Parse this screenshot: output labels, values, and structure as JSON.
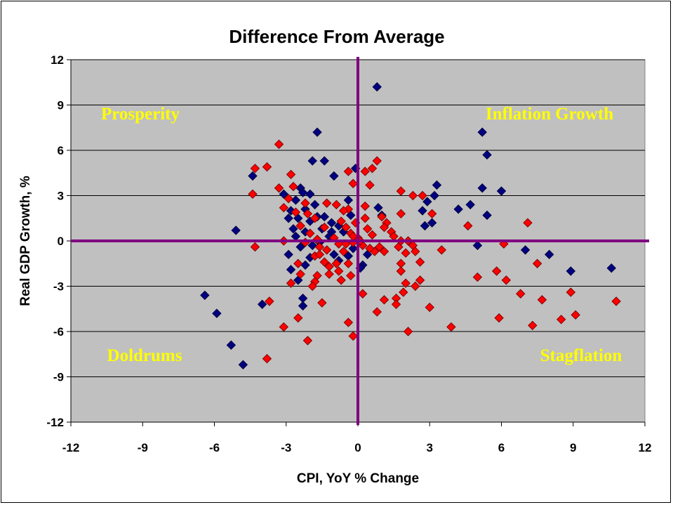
{
  "chart_data": {
    "type": "scatter",
    "title": "Difference From Average",
    "xlabel": "CPI, YoY % Change",
    "ylabel": "Real GDP Growth, %",
    "xlim": [
      -12,
      12
    ],
    "ylim": [
      -12,
      12
    ],
    "xticks": [
      -12,
      -9,
      -6,
      -3,
      0,
      3,
      6,
      9,
      12
    ],
    "yticks": [
      -12,
      -9,
      -6,
      -3,
      0,
      3,
      6,
      9,
      12
    ],
    "grid": "horizontal",
    "legend": "none",
    "colors": {
      "plot_bg": "#c0c0c0",
      "axis_cross": "#800080",
      "quadrant_text": "#ffff00",
      "series_blue": "#000080",
      "series_red": "#ff0000"
    },
    "quadrant_labels": {
      "top_left": "Prosperity",
      "top_right": "Inflation Growth",
      "bottom_left": "Doldrums",
      "bottom_right": "Stagflation"
    },
    "series": [
      {
        "color": "#000080",
        "marker": "diamond",
        "points": [
          [
            0.8,
            10.2
          ],
          [
            -1.7,
            7.2
          ],
          [
            5.2,
            7.2
          ],
          [
            5.4,
            5.7
          ],
          [
            -1.9,
            5.3
          ],
          [
            -1.4,
            5.3
          ],
          [
            -5.1,
            0.7
          ],
          [
            -4.4,
            4.3
          ],
          [
            -6.4,
            -3.6
          ],
          [
            -5.9,
            -4.8
          ],
          [
            -5.3,
            -6.9
          ],
          [
            -4.8,
            -8.2
          ],
          [
            -4.0,
            -4.2
          ],
          [
            3.3,
            3.7
          ],
          [
            3.2,
            3.0
          ],
          [
            2.9,
            2.6
          ],
          [
            2.7,
            2.0
          ],
          [
            4.2,
            2.1
          ],
          [
            4.7,
            2.4
          ],
          [
            5.2,
            3.5
          ],
          [
            5.4,
            1.7
          ],
          [
            6.0,
            3.3
          ],
          [
            5.0,
            -0.3
          ],
          [
            7.0,
            -0.6
          ],
          [
            8.0,
            -0.9
          ],
          [
            8.9,
            -2.0
          ],
          [
            10.6,
            -1.8
          ],
          [
            3.1,
            1.2
          ],
          [
            2.8,
            1.0
          ],
          [
            -0.1,
            4.8
          ],
          [
            -1.0,
            4.3
          ],
          [
            -2.2,
            -1.6
          ],
          [
            -2.8,
            -1.9
          ],
          [
            -3.1,
            3.1
          ],
          [
            -2.9,
            -0.9
          ],
          [
            -2.3,
            -3.8
          ],
          [
            -2.3,
            -4.3
          ],
          [
            0.2,
            -1.6
          ],
          [
            1.0,
            1.7
          ],
          [
            0.85,
            2.2
          ],
          [
            -0.4,
            2.7
          ],
          [
            -2.4,
            3.5
          ],
          [
            -2.3,
            3.2
          ],
          [
            -2.0,
            3.1
          ],
          [
            -2.6,
            2.7
          ],
          [
            -2.8,
            2.0
          ],
          [
            -2.5,
            1.5
          ],
          [
            -2.7,
            0.8
          ],
          [
            -2.6,
            0.3
          ],
          [
            -2.4,
            -0.4
          ],
          [
            -2.2,
            0.6
          ],
          [
            -2.0,
            1.3
          ],
          [
            -1.7,
            1.6
          ],
          [
            -1.4,
            1.6
          ],
          [
            -1.1,
            1.2
          ],
          [
            -1.5,
            0.8
          ],
          [
            -1.2,
            0.3
          ],
          [
            -0.8,
            1.0
          ],
          [
            -0.6,
            0.6
          ],
          [
            -1.0,
            -0.9
          ],
          [
            -0.8,
            -1.3
          ],
          [
            -0.4,
            -1.0
          ],
          [
            -1.8,
            2.4
          ],
          [
            -2.9,
            1.5
          ],
          [
            -1.9,
            -0.3
          ],
          [
            -2.0,
            -1.1
          ],
          [
            -0.2,
            -0.5
          ],
          [
            0.4,
            -0.9
          ],
          [
            -2.5,
            -2.6
          ],
          [
            -0.3,
            1.7
          ],
          [
            -2.2,
            2.1
          ],
          [
            -1.1,
            0.6
          ],
          [
            -1.6,
            -0.1
          ],
          [
            0.1,
            -1.8
          ]
        ]
      },
      {
        "color": "#ff0000",
        "marker": "diamond",
        "points": [
          [
            -3.3,
            6.4
          ],
          [
            -4.3,
            4.8
          ],
          [
            -3.8,
            4.9
          ],
          [
            -4.4,
            3.1
          ],
          [
            -3.3,
            3.5
          ],
          [
            -2.8,
            4.4
          ],
          [
            -2.7,
            3.6
          ],
          [
            -3.1,
            2.2
          ],
          [
            -2.9,
            2.8
          ],
          [
            -4.3,
            -0.4
          ],
          [
            -3.1,
            0
          ],
          [
            -3.7,
            -4.0
          ],
          [
            -3.8,
            -7.8
          ],
          [
            -3.1,
            -5.7
          ],
          [
            -2.5,
            -5.1
          ],
          [
            -2.1,
            -6.6
          ],
          [
            -2.8,
            -2.8
          ],
          [
            -1.5,
            -4.1
          ],
          [
            -0.4,
            -5.4
          ],
          [
            -0.2,
            -6.3
          ],
          [
            0.2,
            -3.5
          ],
          [
            0.8,
            -4.7
          ],
          [
            1.1,
            -3.9
          ],
          [
            1.6,
            -3.8
          ],
          [
            1.6,
            -4.2
          ],
          [
            2.1,
            -6.0
          ],
          [
            2.0,
            -2.8
          ],
          [
            1.9,
            -3.4
          ],
          [
            2.4,
            -3.0
          ],
          [
            2.6,
            -2.6
          ],
          [
            3.0,
            -4.4
          ],
          [
            3.9,
            -5.7
          ],
          [
            3.5,
            -0.6
          ],
          [
            4.6,
            1.0
          ],
          [
            5.0,
            -2.4
          ],
          [
            5.8,
            -2.0
          ],
          [
            5.9,
            -5.1
          ],
          [
            6.1,
            -0.2
          ],
          [
            6.2,
            -2.6
          ],
          [
            6.8,
            -3.5
          ],
          [
            7.1,
            1.2
          ],
          [
            7.3,
            -5.6
          ],
          [
            7.5,
            -1.5
          ],
          [
            7.7,
            -3.9
          ],
          [
            8.5,
            -5.2
          ],
          [
            8.9,
            -3.4
          ],
          [
            9.1,
            -4.9
          ],
          [
            10.8,
            -4.0
          ],
          [
            0.8,
            5.3
          ],
          [
            0.6,
            4.8
          ],
          [
            0.3,
            4.6
          ],
          [
            0.5,
            3.7
          ],
          [
            0.3,
            2.3
          ],
          [
            1.8,
            3.3
          ],
          [
            2.3,
            3.0
          ],
          [
            2.7,
            3.0
          ],
          [
            1.8,
            1.8
          ],
          [
            3.1,
            1.8
          ],
          [
            -0.4,
            4.6
          ],
          [
            -0.2,
            3.8
          ],
          [
            -0.9,
            2.4
          ],
          [
            -0.4,
            2.1
          ],
          [
            -0.6,
            2.0
          ],
          [
            1.2,
            1.2
          ],
          [
            1.1,
            0.9
          ],
          [
            1.4,
            0.6
          ],
          [
            1.5,
            0.3
          ],
          [
            1.8,
            0
          ],
          [
            2.1,
            0
          ],
          [
            2.3,
            -0.3
          ],
          [
            1.7,
            -0.4
          ],
          [
            2.0,
            -0.8
          ],
          [
            1.8,
            -1.5
          ],
          [
            1.8,
            -2.0
          ],
          [
            2.6,
            -1.4
          ],
          [
            2.4,
            -0.7
          ],
          [
            1.1,
            -0.7
          ],
          [
            0.9,
            -0.4
          ],
          [
            0.7,
            -0.7
          ],
          [
            -1.2,
            -1.7
          ],
          [
            -1.8,
            -1.0
          ],
          [
            -1.4,
            -1.4
          ],
          [
            -0.9,
            -1.5
          ],
          [
            -0.8,
            -2.0
          ],
          [
            -0.7,
            -2.6
          ],
          [
            -1.7,
            -2.3
          ],
          [
            -1.8,
            -2.7
          ],
          [
            -1.2,
            -2.2
          ],
          [
            -0.3,
            -2.3
          ],
          [
            -0.4,
            -1.5
          ],
          [
            -2.1,
            1.8
          ],
          [
            -2.0,
            0.5
          ],
          [
            -1.8,
            1.5
          ],
          [
            -1.4,
            0.9
          ],
          [
            -1.7,
            0.1
          ],
          [
            -1.6,
            -0.4
          ],
          [
            -1.0,
            0.2
          ],
          [
            -0.8,
            -0.2
          ],
          [
            -0.6,
            -0.7
          ],
          [
            -1.3,
            -0.6
          ],
          [
            -1.6,
            -0.9
          ],
          [
            -0.3,
            0.5
          ],
          [
            -0.2,
            -0.1
          ],
          [
            0,
            0.2
          ],
          [
            0.2,
            -0.3
          ],
          [
            0.4,
            0.8
          ],
          [
            0.6,
            0.4
          ],
          [
            0.5,
            -0.5
          ],
          [
            -0.5,
            0.9
          ],
          [
            -0.1,
            1.2
          ],
          [
            0.3,
            1.5
          ],
          [
            -0.7,
            1.3
          ],
          [
            1.0,
            1.6
          ],
          [
            -2.4,
            1.0
          ],
          [
            -2.6,
            1.9
          ],
          [
            -2.2,
            -0.1
          ],
          [
            -2.5,
            -1.5
          ],
          [
            -2.4,
            -2.2
          ],
          [
            -1.9,
            -3.0
          ],
          [
            -2.2,
            2.5
          ],
          [
            -1.3,
            2.5
          ],
          [
            -0.5,
            -0.2
          ],
          [
            0.1,
            0.0
          ],
          [
            -0.2,
            0.3
          ]
        ]
      }
    ]
  }
}
